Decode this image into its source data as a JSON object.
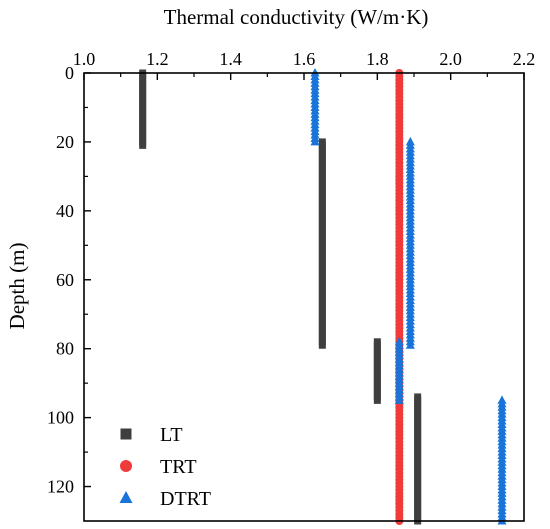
{
  "chart_data": {
    "type": "scatter",
    "title": "",
    "xlabel": "Thermal conductivity (W/m·K)",
    "ylabel": "Depth (m)",
    "xlim": [
      1.0,
      2.2
    ],
    "ylim": [
      0,
      130
    ],
    "x_axis_position": "top",
    "y_axis_inverted": true,
    "grid": false,
    "x_ticks": [
      1.0,
      1.2,
      1.4,
      1.6,
      1.8,
      2.0,
      2.2
    ],
    "x_tick_labels": [
      "1.0",
      "1.2",
      "1.4",
      "1.6",
      "1.8",
      "2.0",
      "2.2"
    ],
    "y_ticks": [
      0,
      20,
      40,
      60,
      80,
      100,
      120
    ],
    "y_tick_labels": [
      "0",
      "20",
      "40",
      "60",
      "80",
      "100",
      "120"
    ],
    "legend": {
      "placement": "bottom-left"
    },
    "series": [
      {
        "name": "LT",
        "marker": "square",
        "color": "#3f3f3f",
        "segments": [
          {
            "x": 1.16,
            "depth_from": 0,
            "depth_to": 21
          },
          {
            "x": 1.65,
            "depth_from": 20,
            "depth_to": 79
          },
          {
            "x": 1.8,
            "depth_from": 78,
            "depth_to": 95
          },
          {
            "x": 1.91,
            "depth_from": 94,
            "depth_to": 130
          }
        ]
      },
      {
        "name": "TRT",
        "marker": "circle",
        "color": "#ef3b3b",
        "segments": [
          {
            "x": 1.86,
            "depth_from": 0,
            "depth_to": 130
          }
        ]
      },
      {
        "name": "DTRT",
        "marker": "triangle",
        "color": "#1874d8",
        "segments": [
          {
            "x": 1.63,
            "depth_from": 0,
            "depth_to": 20
          },
          {
            "x": 1.89,
            "depth_from": 20,
            "depth_to": 79
          },
          {
            "x": 1.86,
            "depth_from": 78,
            "depth_to": 95
          },
          {
            "x": 2.14,
            "depth_from": 95,
            "depth_to": 130
          }
        ]
      }
    ]
  }
}
